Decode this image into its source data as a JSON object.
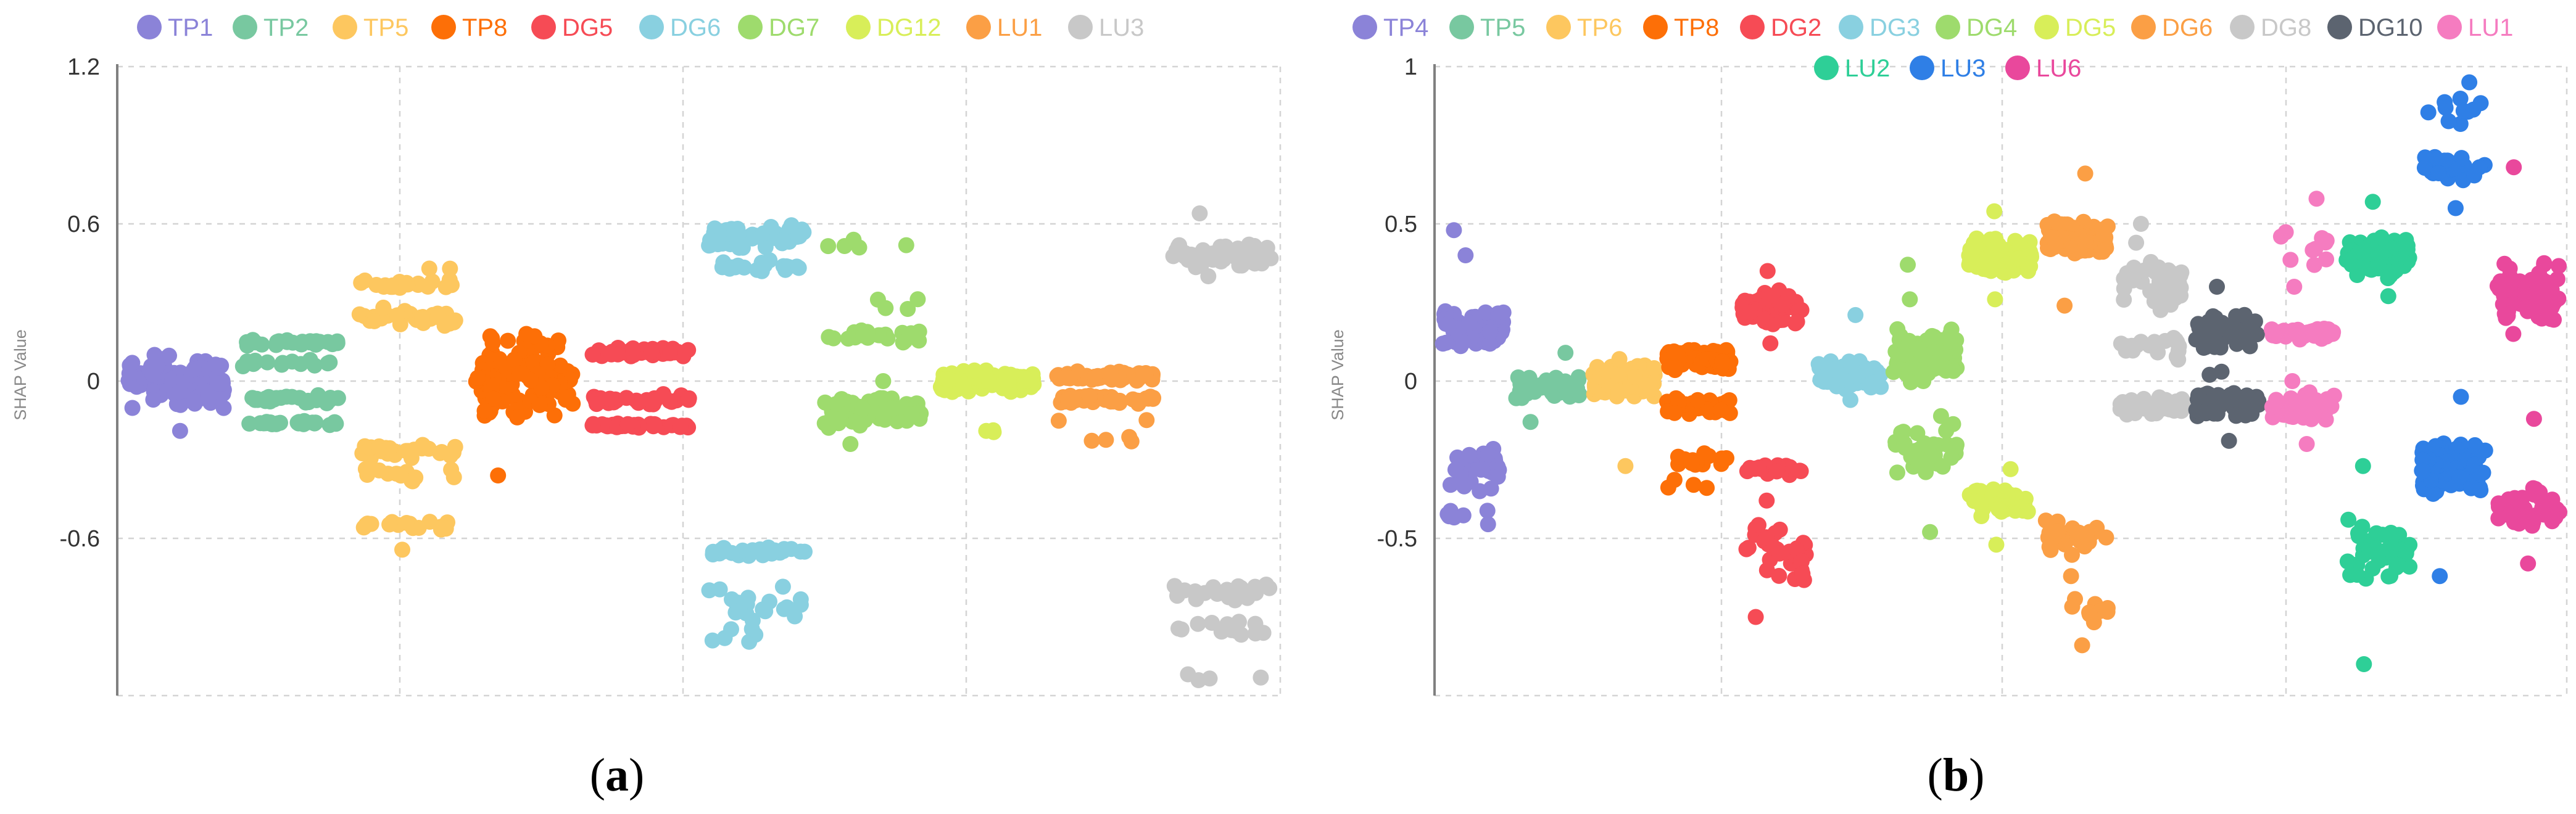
{
  "chart_data": [
    {
      "type": "scatter",
      "panel_label": {
        "open": "(",
        "letter": "a",
        "close": ")"
      },
      "title": "",
      "xlabel": "",
      "ylabel": "SHAP Value",
      "ylim": [
        -1.2,
        1.2
      ],
      "yticks": [
        1.2,
        0.6,
        0,
        -0.6
      ],
      "ytick_labels": [
        "1.2",
        "0.6",
        "0",
        "-0.6"
      ],
      "grid": true,
      "legend_position": "top",
      "series": [
        {
          "name": "TP1",
          "color": "#8b83d8",
          "clusters": [
            {
              "center": 0.0,
              "spread": 0.11,
              "n": 100,
              "tails": [
                -0.19,
                0.1
              ]
            }
          ]
        },
        {
          "name": "TP2",
          "color": "#78c8a0",
          "clusters": [
            {
              "center": 0.15,
              "spread": 0.02,
              "n": 28
            },
            {
              "center": 0.07,
              "spread": 0.02,
              "n": 14
            },
            {
              "center": -0.07,
              "spread": 0.02,
              "n": 28
            },
            {
              "center": -0.16,
              "spread": 0.01,
              "n": 28
            }
          ]
        },
        {
          "name": "TP5",
          "color": "#fdc75f",
          "clusters": [
            {
              "center": 0.37,
              "spread": 0.02,
              "n": 20
            },
            {
              "center": 0.25,
              "spread": 0.04,
              "n": 34
            },
            {
              "center": 0.43,
              "spread": 0.01,
              "n": 2
            },
            {
              "center": -0.27,
              "spread": 0.03,
              "n": 28
            },
            {
              "center": -0.36,
              "spread": 0.03,
              "n": 12
            },
            {
              "center": -0.55,
              "spread": 0.02,
              "n": 18
            },
            {
              "center": -0.65,
              "spread": 0.01,
              "n": 1
            }
          ]
        },
        {
          "name": "TP8",
          "color": "#fd6f07",
          "clusters": [
            {
              "center": 0.02,
              "spread": 0.17,
              "n": 120,
              "tails": [
                -0.36,
                0.18
              ]
            }
          ]
        },
        {
          "name": "DG5",
          "color": "#f64b55",
          "clusters": [
            {
              "center": 0.11,
              "spread": 0.02,
              "n": 40
            },
            {
              "center": -0.07,
              "spread": 0.03,
              "n": 30
            },
            {
              "center": -0.17,
              "spread": 0.01,
              "n": 34
            }
          ]
        },
        {
          "name": "DG6",
          "color": "#89d0e0",
          "clusters": [
            {
              "center": 0.55,
              "spread": 0.05,
              "n": 60
            },
            {
              "center": 0.44,
              "spread": 0.03,
              "n": 20
            },
            {
              "center": -0.65,
              "spread": 0.02,
              "n": 26
            },
            {
              "center": -0.84,
              "spread": 0.09,
              "n": 22
            },
            {
              "center": -0.97,
              "spread": 0.04,
              "n": 6
            }
          ]
        },
        {
          "name": "DG7",
          "color": "#9edb6d",
          "clusters": [
            {
              "center": 0.52,
              "spread": 0.04,
              "n": 5
            },
            {
              "center": 0.3,
              "spread": 0.05,
              "n": 4
            },
            {
              "center": 0.17,
              "spread": 0.03,
              "n": 22
            },
            {
              "center": -0.12,
              "spread": 0.06,
              "n": 90,
              "tails": [
                -0.24,
                0.0
              ]
            }
          ]
        },
        {
          "name": "DG12",
          "color": "#d8ee59",
          "clusters": [
            {
              "center": 0.0,
              "spread": 0.045,
              "n": 100
            },
            {
              "center": -0.19,
              "spread": 0.01,
              "n": 3
            }
          ]
        },
        {
          "name": "LU1",
          "color": "#fb9f45",
          "clusters": [
            {
              "center": 0.02,
              "spread": 0.02,
              "n": 50
            },
            {
              "center": -0.07,
              "spread": 0.02,
              "n": 40
            },
            {
              "center": -0.22,
              "spread": 0.02,
              "n": 4
            },
            {
              "center": -0.15,
              "spread": 0.01,
              "n": 2
            }
          ]
        },
        {
          "name": "LU3",
          "color": "#c8c8c8",
          "clusters": [
            {
              "center": 0.48,
              "spread": 0.05,
              "n": 65,
              "tails": [
                0.4,
                0.64
              ]
            },
            {
              "center": -0.8,
              "spread": 0.04,
              "n": 24
            },
            {
              "center": -0.95,
              "spread": 0.04,
              "n": 14
            },
            {
              "center": -1.13,
              "spread": 0.03,
              "n": 4
            }
          ]
        }
      ]
    },
    {
      "type": "scatter",
      "panel_label": {
        "open": "(",
        "letter": "b",
        "close": ")"
      },
      "title": "",
      "xlabel": "",
      "ylabel": "SHAP Value",
      "ylim": [
        -1.0,
        1.0
      ],
      "yticks": [
        1,
        0.5,
        0,
        -0.5
      ],
      "ytick_labels": [
        "1",
        "0.5",
        "0",
        "-0.5"
      ],
      "grid": true,
      "legend_position": "top",
      "series": [
        {
          "name": "TP4",
          "color": "#8b83d8",
          "clusters": [
            {
              "center": 0.17,
              "spread": 0.07,
              "n": 60,
              "tails": [
                0.4,
                0.48
              ]
            },
            {
              "center": -0.28,
              "spread": 0.08,
              "n": 28
            },
            {
              "center": -0.43,
              "spread": 0.03,
              "n": 8
            }
          ]
        },
        {
          "name": "TP5",
          "color": "#78c8a0",
          "clusters": [
            {
              "center": -0.02,
              "spread": 0.04,
              "n": 50,
              "tails": [
                -0.13,
                0.09
              ]
            }
          ]
        },
        {
          "name": "TP6",
          "color": "#fdc75f",
          "clusters": [
            {
              "center": 0.0,
              "spread": 0.06,
              "n": 110,
              "tails": [
                -0.27,
                0.07
              ]
            }
          ]
        },
        {
          "name": "TP8",
          "color": "#fd6f07",
          "clusters": [
            {
              "center": 0.07,
              "spread": 0.04,
              "n": 70
            },
            {
              "center": -0.08,
              "spread": 0.03,
              "n": 40
            },
            {
              "center": -0.25,
              "spread": 0.03,
              "n": 14
            },
            {
              "center": -0.33,
              "spread": 0.02,
              "n": 4
            }
          ]
        },
        {
          "name": "DG2",
          "color": "#f64b55",
          "clusters": [
            {
              "center": 0.23,
              "spread": 0.06,
              "n": 60,
              "tails": [
                0.12,
                0.35
              ]
            },
            {
              "center": -0.28,
              "spread": 0.02,
              "n": 18
            },
            {
              "center": -0.55,
              "spread": 0.1,
              "n": 30,
              "tails": [
                -0.75,
                -0.38
              ]
            }
          ]
        },
        {
          "name": "DG3",
          "color": "#89d0e0",
          "clusters": [
            {
              "center": 0.02,
              "spread": 0.05,
              "n": 70,
              "tails": [
                -0.06,
                0.21
              ]
            }
          ]
        },
        {
          "name": "DG4",
          "color": "#9edb6d",
          "clusters": [
            {
              "center": 0.08,
              "spread": 0.1,
              "n": 70,
              "tails": [
                0.26,
                0.37
              ]
            },
            {
              "center": -0.22,
              "spread": 0.11,
              "n": 40,
              "tails": [
                -0.48,
                0.0
              ]
            }
          ]
        },
        {
          "name": "DG5",
          "color": "#d8ee59",
          "clusters": [
            {
              "center": 0.4,
              "spread": 0.07,
              "n": 100,
              "tails": [
                0.26,
                0.54
              ]
            },
            {
              "center": -0.38,
              "spread": 0.06,
              "n": 40,
              "tails": [
                -0.52,
                -0.28
              ]
            }
          ]
        },
        {
          "name": "DG6",
          "color": "#fb9f45",
          "clusters": [
            {
              "center": 0.45,
              "spread": 0.06,
              "n": 90,
              "tails": [
                0.24,
                0.66
              ]
            },
            {
              "center": -0.5,
              "spread": 0.07,
              "n": 30
            },
            {
              "center": -0.7,
              "spread": 0.08,
              "n": 10,
              "tails": [
                -0.84,
                -0.62
              ]
            }
          ]
        },
        {
          "name": "DG8",
          "color": "#c8c8c8",
          "clusters": [
            {
              "center": 0.3,
              "spread": 0.1,
              "n": 40,
              "tails": [
                0.44,
                0.5
              ]
            },
            {
              "center": 0.1,
              "spread": 0.04,
              "n": 20
            },
            {
              "center": -0.08,
              "spread": 0.03,
              "n": 80
            }
          ]
        },
        {
          "name": "DG10",
          "color": "#5c6470",
          "clusters": [
            {
              "center": 0.15,
              "spread": 0.07,
              "n": 50,
              "tails": [
                0.03,
                0.3
              ]
            },
            {
              "center": -0.08,
              "spread": 0.05,
              "n": 60,
              "tails": [
                -0.19,
                0.02
              ]
            }
          ]
        },
        {
          "name": "LU1",
          "color": "#f57cc0",
          "clusters": [
            {
              "center": 0.15,
              "spread": 0.02,
              "n": 50
            },
            {
              "center": 0.42,
              "spread": 0.1,
              "n": 10,
              "tails": [
                0.3,
                0.58
              ]
            },
            {
              "center": -0.08,
              "spread": 0.05,
              "n": 60,
              "tails": [
                -0.2,
                0.0
              ]
            }
          ]
        },
        {
          "name": "LU2",
          "color": "#2ecf97",
          "clusters": [
            {
              "center": 0.39,
              "spread": 0.07,
              "n": 80,
              "tails": [
                0.27,
                0.57
              ]
            },
            {
              "center": -0.55,
              "spread": 0.12,
              "n": 40,
              "tails": [
                -0.9,
                -0.27
              ]
            }
          ]
        },
        {
          "name": "LU3",
          "color": "#2f7fe6",
          "clusters": [
            {
              "center": 0.68,
              "spread": 0.05,
              "n": 28,
              "tails": [
                0.55,
                0.95
              ]
            },
            {
              "center": 0.86,
              "spread": 0.05,
              "n": 10
            },
            {
              "center": -0.27,
              "spread": 0.09,
              "n": 80,
              "tails": [
                -0.62,
                -0.05
              ]
            }
          ]
        },
        {
          "name": "LU6",
          "color": "#e9489c",
          "clusters": [
            {
              "center": 0.28,
              "spread": 0.12,
              "n": 60,
              "tails": [
                0.15,
                0.68
              ]
            },
            {
              "center": -0.4,
              "spread": 0.08,
              "n": 50,
              "tails": [
                -0.58,
                -0.12
              ]
            }
          ]
        }
      ]
    }
  ]
}
